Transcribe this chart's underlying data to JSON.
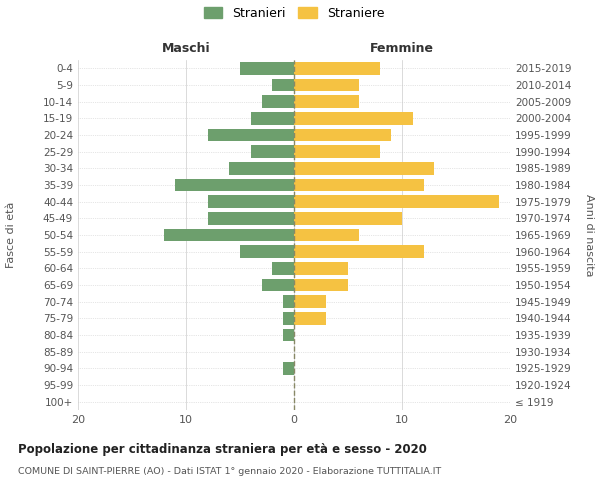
{
  "age_groups": [
    "100+",
    "95-99",
    "90-94",
    "85-89",
    "80-84",
    "75-79",
    "70-74",
    "65-69",
    "60-64",
    "55-59",
    "50-54",
    "45-49",
    "40-44",
    "35-39",
    "30-34",
    "25-29",
    "20-24",
    "15-19",
    "10-14",
    "5-9",
    "0-4"
  ],
  "birth_years": [
    "≤ 1919",
    "1920-1924",
    "1925-1929",
    "1930-1934",
    "1935-1939",
    "1940-1944",
    "1945-1949",
    "1950-1954",
    "1955-1959",
    "1960-1964",
    "1965-1969",
    "1970-1974",
    "1975-1979",
    "1980-1984",
    "1985-1989",
    "1990-1994",
    "1995-1999",
    "2000-2004",
    "2005-2009",
    "2010-2014",
    "2015-2019"
  ],
  "males": [
    0,
    0,
    1,
    0,
    1,
    1,
    1,
    3,
    2,
    5,
    12,
    8,
    8,
    11,
    6,
    4,
    8,
    4,
    3,
    2,
    5
  ],
  "females": [
    0,
    0,
    0,
    0,
    0,
    3,
    3,
    5,
    5,
    12,
    6,
    10,
    19,
    12,
    13,
    8,
    9,
    11,
    6,
    6,
    8
  ],
  "male_color": "#6d9f6d",
  "female_color": "#f5c242",
  "background_color": "#ffffff",
  "grid_color": "#cccccc",
  "title1": "Popolazione per cittadinanza straniera per età e sesso - 2020",
  "title2": "COMUNE DI SAINT-PIERRE (AO) - Dati ISTAT 1° gennaio 2020 - Elaborazione TUTTITALIA.IT",
  "left_header": "Maschi",
  "right_header": "Femmine",
  "left_ylabel": "Fasce di età",
  "right_ylabel": "Anni di nascita",
  "xlim": 20,
  "legend_labels": [
    "Stranieri",
    "Straniere"
  ],
  "dashed_line_color": "#888866"
}
